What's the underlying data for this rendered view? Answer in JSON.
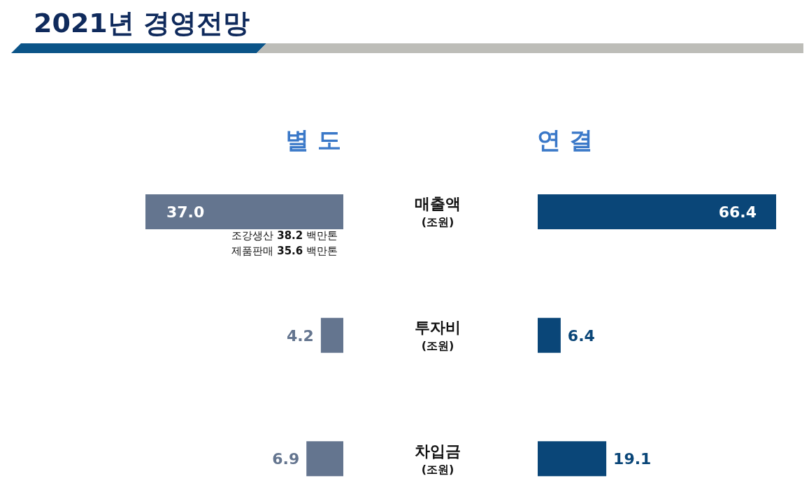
{
  "chart_data": [
    {
      "type": "other",
      "title": "2021년 경영전망"
    },
    {
      "type": "bar",
      "title": "별 도",
      "orientation": "horizontal",
      "categories": [
        "매출액\n(조원)",
        "투자비\n(조원)",
        "차입금\n(조원)"
      ],
      "values": [
        37.0,
        4.2,
        6.9
      ],
      "value_labels": [
        "37.0",
        "4.2",
        "6.9"
      ],
      "color": "#64758f",
      "xlim": [
        37.0,
        0
      ],
      "tick_labels": "y",
      "grid": false,
      "annotations": [
        "조강생산 38.2 백만톤",
        "제품판매 35.6 백만톤"
      ]
    },
    {
      "type": "bar",
      "title": "연 결",
      "orientation": "horizontal",
      "values": [
        66.4,
        6.4,
        19.1
      ],
      "value_labels": [
        "66.4",
        "6.4",
        "19.1"
      ],
      "color": "#0a4678",
      "xlim": [
        0,
        66.4
      ],
      "tick_labels": false,
      "grid": false
    }
  ]
}
